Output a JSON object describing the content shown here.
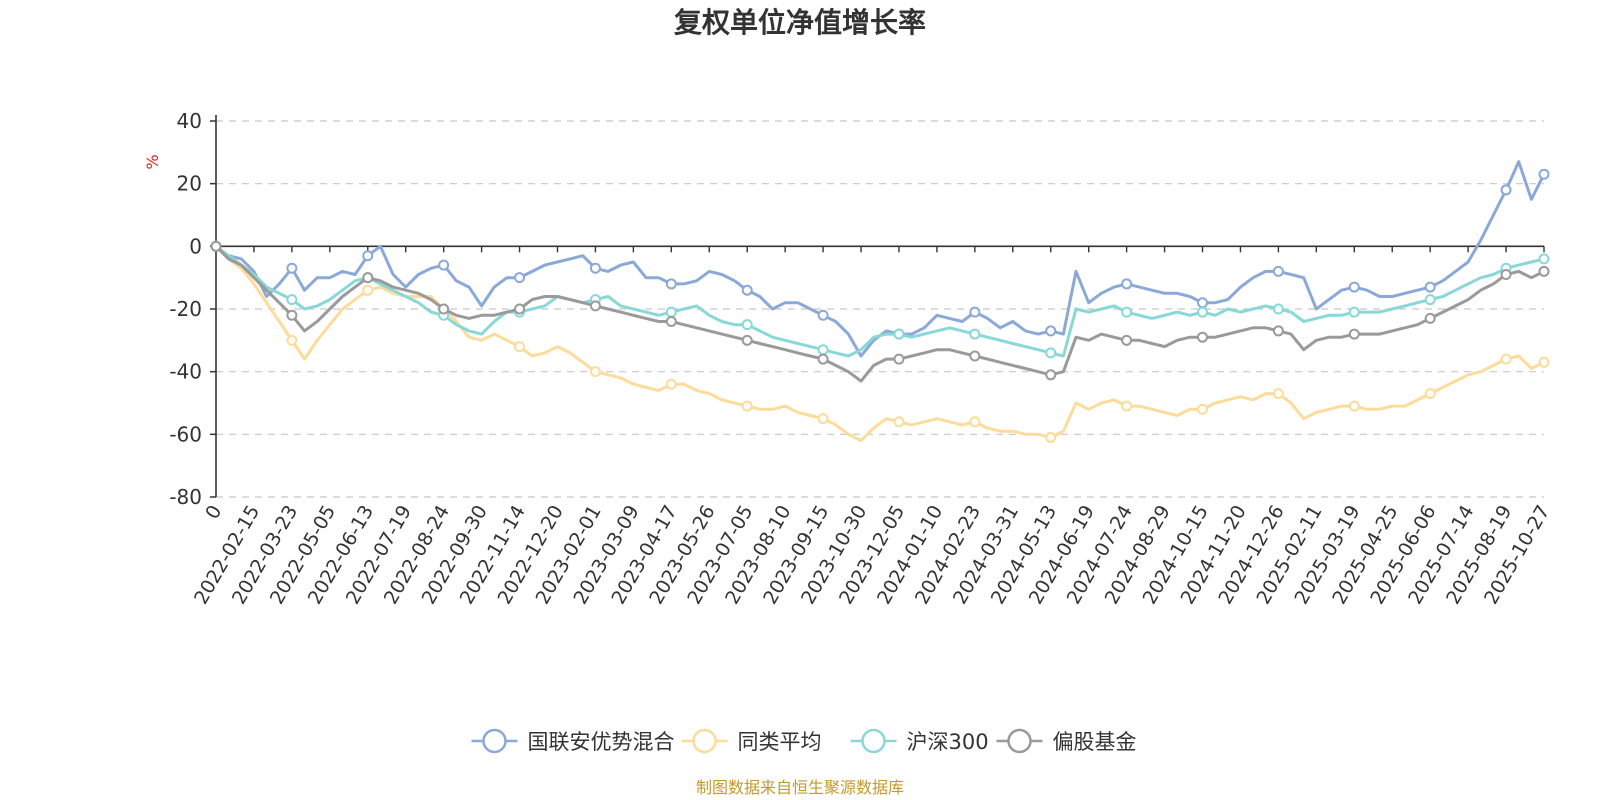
{
  "chart_data": {
    "type": "line",
    "title": "复权单位净值增长率",
    "ylabel": "%",
    "ylim": [
      -80,
      40
    ],
    "yticks": [
      40,
      20,
      0,
      -20,
      -40,
      -60,
      -80
    ],
    "x_tick_labels": [
      "0",
      "2022-02-15",
      "2022-03-23",
      "2022-05-05",
      "2022-06-13",
      "2022-07-19",
      "2022-08-24",
      "2022-09-30",
      "2022-11-14",
      "2022-12-20",
      "2023-02-01",
      "2023-03-09",
      "2023-04-17",
      "2023-05-26",
      "2023-07-05",
      "2023-08-10",
      "2023-09-15",
      "2023-10-30",
      "2023-12-05",
      "2024-01-10",
      "2024-02-23",
      "2024-03-31",
      "2024-05-13",
      "2024-06-19",
      "2024-07-24",
      "2024-08-29",
      "2024-10-15",
      "2024-11-20",
      "2024-12-26",
      "2025-02-11",
      "2025-03-19",
      "2025-04-25",
      "2025-06-06",
      "2025-07-14",
      "2025-08-19",
      "2025-10-27"
    ],
    "grid": true,
    "legend_position": "bottom",
    "x": [
      0,
      1,
      2,
      3,
      4,
      5,
      6,
      7,
      8,
      9,
      10,
      11,
      12,
      13,
      14,
      15,
      16,
      17,
      18,
      19,
      20,
      21,
      22,
      23,
      24,
      25,
      26,
      27,
      28,
      29,
      30,
      31,
      32,
      33,
      34,
      35,
      36,
      37,
      38,
      39,
      40,
      41,
      42,
      43,
      44,
      45,
      46,
      47,
      48,
      49,
      50,
      51,
      52,
      53,
      54,
      55,
      56,
      57,
      58,
      59,
      60,
      61,
      62,
      63,
      64,
      65,
      66,
      67,
      68,
      69,
      70,
      71,
      72,
      73,
      74,
      75,
      76,
      77,
      78,
      79,
      80,
      81,
      82,
      83,
      84,
      85,
      86,
      87,
      88,
      89,
      90,
      91,
      92,
      93,
      94,
      95,
      96,
      97,
      98,
      99,
      100,
      101,
      102,
      103,
      104,
      105
    ],
    "series": [
      {
        "name": "国联安优势混合",
        "color": "#8aa8d8",
        "values": [
          0,
          -3,
          -4,
          -8,
          -16,
          -12,
          -7,
          -14,
          -10,
          -10,
          -8,
          -9,
          -3,
          0,
          -9,
          -13,
          -9,
          -7,
          -6,
          -11,
          -13,
          -19,
          -13,
          -10,
          -10,
          -8,
          -6,
          -5,
          -4,
          -3,
          -7,
          -8,
          -6,
          -5,
          -10,
          -10,
          -12,
          -12,
          -11,
          -8,
          -9,
          -11,
          -14,
          -16,
          -20,
          -18,
          -18,
          -20,
          -22,
          -24,
          -28,
          -35,
          -30,
          -27,
          -28,
          -28,
          -26,
          -22,
          -23,
          -24,
          -21,
          -23,
          -26,
          -24,
          -27,
          -28,
          -27,
          -28,
          -8,
          -18,
          -15,
          -13,
          -12,
          -13,
          -14,
          -15,
          -15,
          -16,
          -18,
          -18,
          -17,
          -13,
          -10,
          -8,
          -8,
          -9,
          -10,
          -20,
          -17,
          -14,
          -13,
          -14,
          -16,
          -16,
          -15,
          -14,
          -13,
          -11,
          -8,
          -5,
          2,
          10,
          18,
          27,
          15,
          23
        ]
      },
      {
        "name": "同类平均",
        "color": "#fddb9a",
        "values": [
          0,
          -4,
          -7,
          -12,
          -18,
          -24,
          -30,
          -36,
          -30,
          -25,
          -20,
          -17,
          -14,
          -13,
          -15,
          -16,
          -16,
          -16,
          -20,
          -24,
          -29,
          -30,
          -28,
          -30,
          -32,
          -35,
          -34,
          -32,
          -34,
          -37,
          -40,
          -41,
          -42,
          -44,
          -45,
          -46,
          -44,
          -44,
          -46,
          -47,
          -49,
          -50,
          -51,
          -52,
          -52,
          -51,
          -53,
          -54,
          -55,
          -57,
          -60,
          -62,
          -58,
          -55,
          -56,
          -57,
          -56,
          -55,
          -56,
          -57,
          -56,
          -58,
          -59,
          -59,
          -60,
          -60,
          -61,
          -59,
          -50,
          -52,
          -50,
          -49,
          -51,
          -51,
          -52,
          -53,
          -54,
          -52,
          -52,
          -50,
          -49,
          -48,
          -49,
          -47,
          -47,
          -50,
          -55,
          -53,
          -52,
          -51,
          -51,
          -52,
          -52,
          -51,
          -51,
          -49,
          -47,
          -45,
          -43,
          -41,
          -40,
          -38,
          -36,
          -35,
          -39,
          -37
        ]
      },
      {
        "name": "沪深300",
        "color": "#88d8d8",
        "values": [
          0,
          -3,
          -6,
          -9,
          -13,
          -15,
          -17,
          -20,
          -19,
          -17,
          -14,
          -11,
          -10,
          -12,
          -14,
          -16,
          -18,
          -21,
          -22,
          -25,
          -27,
          -28,
          -24,
          -21,
          -21,
          -20,
          -19,
          -16,
          -17,
          -18,
          -17,
          -16,
          -19,
          -20,
          -21,
          -22,
          -21,
          -20,
          -19,
          -22,
          -24,
          -25,
          -25,
          -27,
          -29,
          -30,
          -31,
          -32,
          -33,
          -34,
          -35,
          -33,
          -29,
          -28,
          -28,
          -29,
          -28,
          -27,
          -26,
          -27,
          -28,
          -29,
          -30,
          -31,
          -32,
          -33,
          -34,
          -35,
          -20,
          -21,
          -20,
          -19,
          -21,
          -22,
          -23,
          -22,
          -21,
          -22,
          -21,
          -22,
          -20,
          -21,
          -20,
          -19,
          -20,
          -21,
          -24,
          -23,
          -22,
          -22,
          -21,
          -21,
          -21,
          -20,
          -19,
          -18,
          -17,
          -16,
          -14,
          -12,
          -10,
          -9,
          -7,
          -6,
          -5,
          -4
        ]
      },
      {
        "name": "偏股基金",
        "color": "#9a9a9a",
        "values": [
          0,
          -4,
          -6,
          -10,
          -14,
          -18,
          -22,
          -27,
          -24,
          -20,
          -16,
          -13,
          -10,
          -11,
          -13,
          -14,
          -15,
          -17,
          -20,
          -22,
          -23,
          -22,
          -22,
          -21,
          -20,
          -17,
          -16,
          -16,
          -17,
          -18,
          -19,
          -20,
          -21,
          -22,
          -23,
          -24,
          -24,
          -25,
          -26,
          -27,
          -28,
          -29,
          -30,
          -31,
          -32,
          -33,
          -34,
          -35,
          -36,
          -38,
          -40,
          -43,
          -38,
          -36,
          -36,
          -35,
          -34,
          -33,
          -33,
          -34,
          -35,
          -36,
          -37,
          -38,
          -39,
          -40,
          -41,
          -40,
          -29,
          -30,
          -28,
          -29,
          -30,
          -30,
          -31,
          -32,
          -30,
          -29,
          -29,
          -29,
          -28,
          -27,
          -26,
          -26,
          -27,
          -28,
          -33,
          -30,
          -29,
          -29,
          -28,
          -28,
          -28,
          -27,
          -26,
          -25,
          -23,
          -21,
          -19,
          -17,
          -14,
          -12,
          -9,
          -8,
          -10,
          -8
        ]
      }
    ]
  },
  "source_note": "制图数据来自恒生聚源数据库"
}
